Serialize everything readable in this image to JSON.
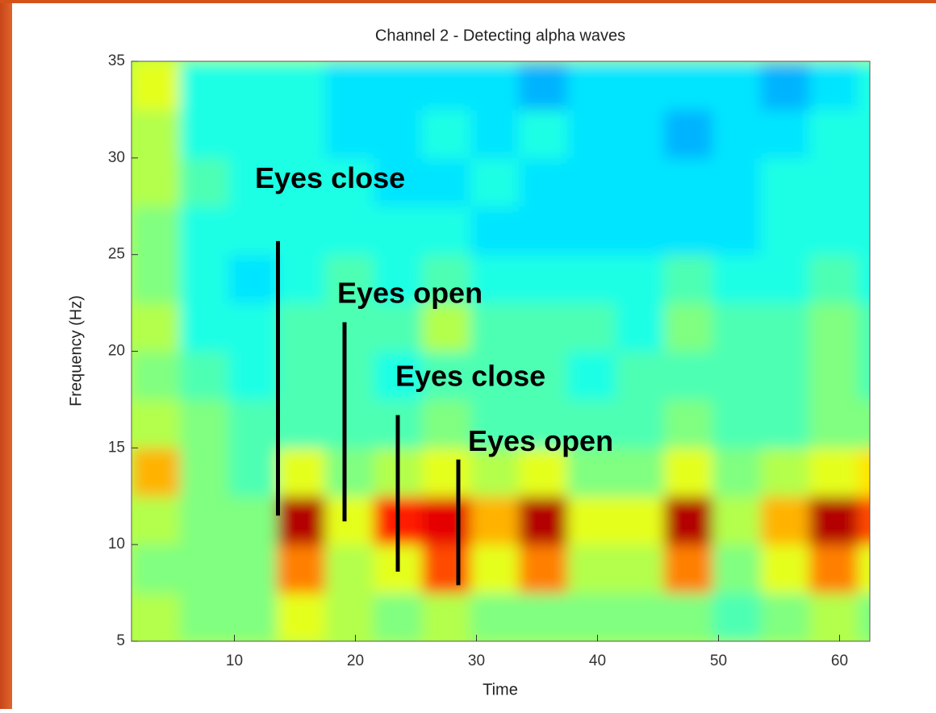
{
  "chart_data": {
    "type": "spectrogram",
    "title": "Channel 2 - Detecting alpha waves",
    "xlabel": "Time",
    "ylabel": "Frequency (Hz)",
    "xlim": [
      1.5,
      62.5
    ],
    "ylim": [
      5,
      35
    ],
    "xticks": [
      10,
      20,
      30,
      40,
      50,
      60
    ],
    "yticks": [
      5,
      10,
      15,
      20,
      25,
      30,
      35
    ],
    "colormap": "jet",
    "clim": [
      0,
      1
    ],
    "x": [
      3.5,
      7.5,
      11.5,
      15.5,
      19.5,
      23.5,
      27.5,
      31.5,
      35.5,
      39.5,
      43.5,
      47.5,
      51.5,
      55.5,
      59.5,
      63.5
    ],
    "y": [
      6.25,
      8.75,
      11.25,
      13.75,
      16.25,
      18.75,
      21.25,
      23.75,
      26.25,
      28.75,
      31.25,
      33.75
    ],
    "values": [
      [
        0.55,
        0.5,
        0.5,
        0.6,
        0.55,
        0.5,
        0.55,
        0.5,
        0.5,
        0.5,
        0.5,
        0.5,
        0.45,
        0.5,
        0.55,
        0.5
      ],
      [
        0.5,
        0.5,
        0.5,
        0.75,
        0.55,
        0.6,
        0.8,
        0.6,
        0.75,
        0.55,
        0.55,
        0.75,
        0.5,
        0.6,
        0.75,
        0.6
      ],
      [
        0.55,
        0.5,
        0.5,
        0.95,
        0.6,
        0.85,
        0.9,
        0.7,
        0.95,
        0.6,
        0.6,
        0.95,
        0.55,
        0.7,
        0.95,
        0.8
      ],
      [
        0.7,
        0.5,
        0.45,
        0.6,
        0.5,
        0.55,
        0.6,
        0.55,
        0.6,
        0.5,
        0.5,
        0.6,
        0.5,
        0.55,
        0.6,
        0.65
      ],
      [
        0.55,
        0.5,
        0.45,
        0.45,
        0.45,
        0.45,
        0.5,
        0.45,
        0.45,
        0.45,
        0.45,
        0.5,
        0.45,
        0.45,
        0.5,
        0.5
      ],
      [
        0.5,
        0.45,
        0.4,
        0.45,
        0.45,
        0.4,
        0.45,
        0.45,
        0.45,
        0.4,
        0.45,
        0.45,
        0.45,
        0.45,
        0.5,
        0.45
      ],
      [
        0.55,
        0.4,
        0.4,
        0.45,
        0.45,
        0.45,
        0.55,
        0.45,
        0.45,
        0.45,
        0.4,
        0.5,
        0.45,
        0.45,
        0.5,
        0.45
      ],
      [
        0.5,
        0.4,
        0.35,
        0.4,
        0.45,
        0.4,
        0.45,
        0.4,
        0.4,
        0.4,
        0.4,
        0.45,
        0.4,
        0.4,
        0.45,
        0.4
      ],
      [
        0.5,
        0.4,
        0.4,
        0.4,
        0.4,
        0.4,
        0.4,
        0.35,
        0.35,
        0.35,
        0.35,
        0.35,
        0.35,
        0.4,
        0.4,
        0.4
      ],
      [
        0.55,
        0.45,
        0.4,
        0.4,
        0.4,
        0.35,
        0.35,
        0.4,
        0.35,
        0.35,
        0.35,
        0.35,
        0.35,
        0.4,
        0.4,
        0.4
      ],
      [
        0.55,
        0.4,
        0.4,
        0.4,
        0.35,
        0.35,
        0.4,
        0.35,
        0.4,
        0.35,
        0.35,
        0.3,
        0.35,
        0.35,
        0.4,
        0.4
      ],
      [
        0.6,
        0.4,
        0.4,
        0.4,
        0.35,
        0.35,
        0.35,
        0.35,
        0.3,
        0.35,
        0.35,
        0.35,
        0.35,
        0.3,
        0.35,
        0.4
      ]
    ],
    "annotations": [
      {
        "text": "Eyes close",
        "x": 11.7,
        "y": 28.85,
        "line": {
          "x": 13.6,
          "y": [
            11.5,
            25.7
          ]
        }
      },
      {
        "text": "Eyes open",
        "x": 18.5,
        "y": 22.9,
        "line": {
          "x": 19.1,
          "y": [
            11.2,
            21.5
          ]
        }
      },
      {
        "text": "Eyes close",
        "x": 23.3,
        "y": 18.6,
        "line": {
          "x": 23.5,
          "y": [
            8.6,
            16.7
          ]
        }
      },
      {
        "text": "Eyes open",
        "x": 29.3,
        "y": 15.25,
        "line": {
          "x": 28.5,
          "y": [
            7.9,
            14.4
          ]
        }
      }
    ]
  }
}
